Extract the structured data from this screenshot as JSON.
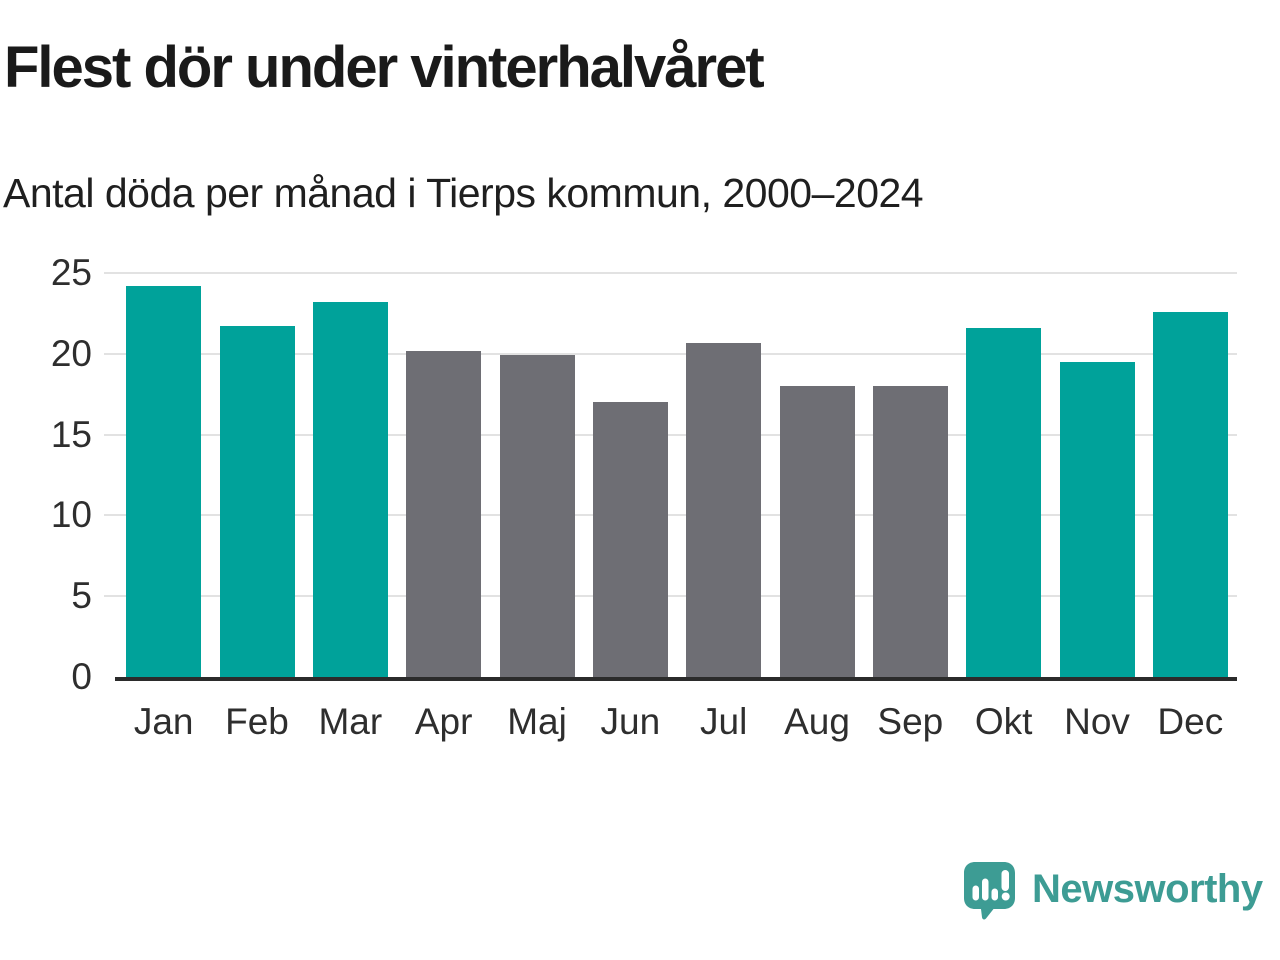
{
  "chart_data": {
    "type": "bar",
    "title": "Flest dör under vinterhalvåret",
    "subtitle": "Antal döda per månad i Tierps kommun, 2000–2024",
    "categories": [
      "Jan",
      "Feb",
      "Mar",
      "Apr",
      "Maj",
      "Jun",
      "Jul",
      "Aug",
      "Sep",
      "Okt",
      "Nov",
      "Dec"
    ],
    "values": [
      24.2,
      21.7,
      23.2,
      20.2,
      19.9,
      17.0,
      20.7,
      18.0,
      18.0,
      21.6,
      19.5,
      22.6
    ],
    "bar_colors": [
      "#00A29A",
      "#00A29A",
      "#00A29A",
      "#6E6E74",
      "#6E6E74",
      "#6E6E74",
      "#6E6E74",
      "#6E6E74",
      "#6E6E74",
      "#00A29A",
      "#00A29A",
      "#00A29A"
    ],
    "color_meaning": {
      "winter_half_year": "#00A29A",
      "summer_half_year": "#6E6E74"
    },
    "xlabel": "",
    "ylabel": "",
    "ylim": [
      0,
      25
    ],
    "yticks": [
      0,
      5,
      10,
      15,
      20,
      25
    ],
    "grid": true,
    "legend_position": "none"
  },
  "colors": {
    "background": "#FFFFFF",
    "title_text": "#1A1A1A",
    "axis_text": "#2E2E2E",
    "gridline": "#E2E2E2",
    "axis_line": "#2B2B2B"
  },
  "branding": {
    "logo_text": "Newsworthy",
    "logo_color": "#3D9C94",
    "logo_icon": "bar-chart-speech-bubble-icon"
  }
}
